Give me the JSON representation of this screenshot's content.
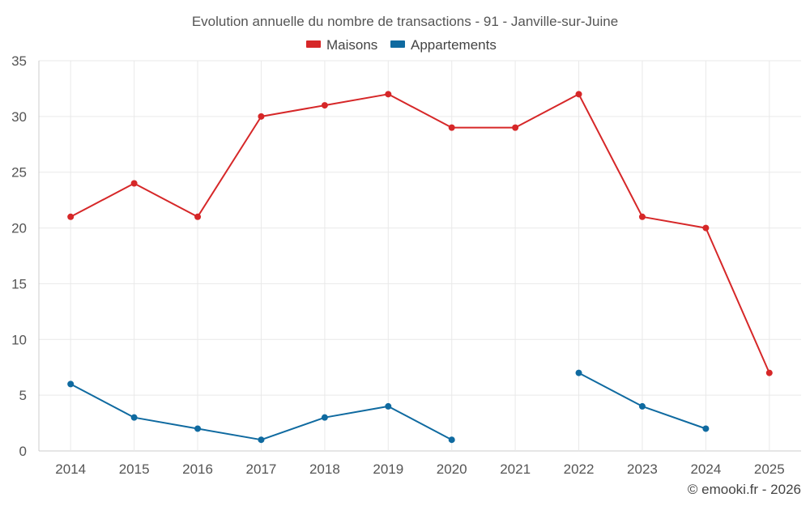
{
  "chart_data": {
    "type": "line",
    "title": "Evolution annuelle du nombre de transactions - 91 - Janville-sur-Juine",
    "categories": [
      "2014",
      "2015",
      "2016",
      "2017",
      "2018",
      "2019",
      "2020",
      "2021",
      "2022",
      "2023",
      "2024",
      "2025"
    ],
    "ylim": [
      0,
      35
    ],
    "yticks": [
      0,
      5,
      10,
      15,
      20,
      25,
      30,
      35
    ],
    "grid": true,
    "legend_position": "top-center",
    "series": [
      {
        "name": "Maisons",
        "color": "#d62728",
        "values": [
          21,
          24,
          21,
          30,
          31,
          32,
          29,
          29,
          32,
          21,
          20,
          7
        ]
      },
      {
        "name": "Appartements",
        "color": "#0f6aa0",
        "values": [
          6,
          3,
          2,
          1,
          3,
          4,
          1,
          null,
          7,
          4,
          2,
          null
        ]
      }
    ],
    "credit": "© emooki.fr - 2026"
  }
}
